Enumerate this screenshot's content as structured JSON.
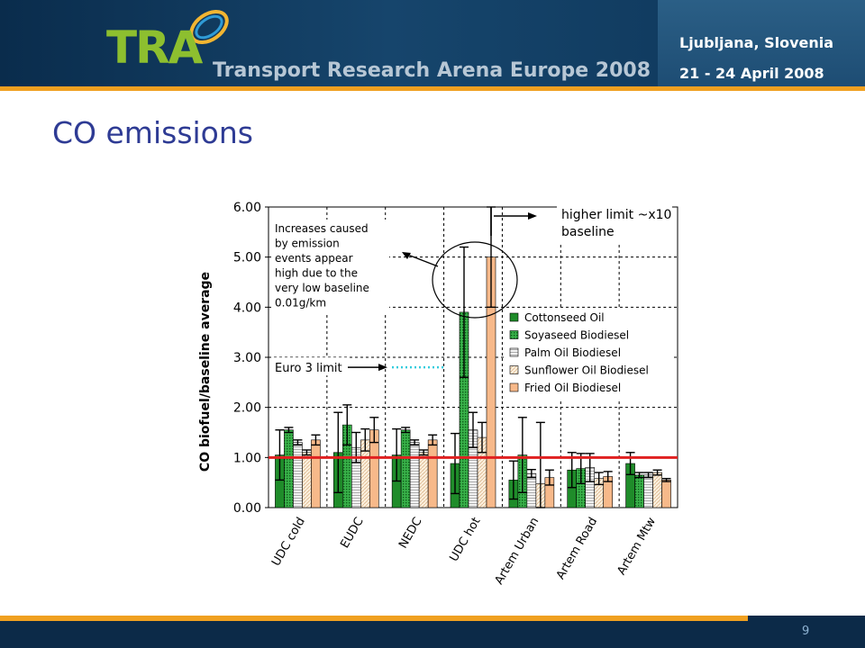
{
  "header": {
    "logo": "TRA",
    "subtitle": "Transport Research Arena Europe 2008",
    "city": "Ljubljana, Slovenia",
    "dates": "21 - 24 April 2008"
  },
  "slide": {
    "title": "CO emissions",
    "page_number": "9"
  },
  "colors": {
    "header_bg": "#0a2c4c",
    "accent_orange": "#f0a020",
    "title_blue": "#2e3b94",
    "baseline_red": "#e02020",
    "euro3_cyan": "#33ccdd"
  },
  "chart_data": {
    "type": "bar",
    "title": "",
    "xlabel": "",
    "ylabel": "CO  biofuel/baseline average",
    "ylim": [
      0,
      6
    ],
    "yticks": [
      "0.00",
      "1.00",
      "2.00",
      "3.00",
      "4.00",
      "5.00",
      "6.00"
    ],
    "grid": true,
    "legend_position": "right",
    "categories": [
      "UDC cold",
      "EUDC",
      "NEDC",
      "UDC hot",
      "Artem Urban",
      "Artem Road",
      "Artem Mtw"
    ],
    "series": [
      {
        "name": "Cottonseed Oil",
        "color": "#1f8c2a",
        "values": [
          1.05,
          1.1,
          1.05,
          0.88,
          0.55,
          0.75,
          0.88
        ],
        "error": [
          0.5,
          0.8,
          0.52,
          0.6,
          0.38,
          0.35,
          0.22
        ]
      },
      {
        "name": "Soyaseed Biodiesel",
        "color": "#39b24a",
        "values": [
          1.55,
          1.65,
          1.55,
          3.9,
          1.05,
          0.78,
          0.65
        ],
        "error": [
          0.05,
          0.4,
          0.05,
          1.3,
          0.75,
          0.3,
          0.05
        ]
      },
      {
        "name": "Palm Oil Biodiesel",
        "color": "#e6e6e6",
        "values": [
          1.3,
          1.2,
          1.3,
          1.55,
          0.68,
          0.8,
          0.65
        ],
        "error": [
          0.05,
          0.3,
          0.05,
          0.35,
          0.08,
          0.28,
          0.05
        ]
      },
      {
        "name": "Sunflower Oil Biodiesel",
        "color": "#fbe4c8",
        "values": [
          1.1,
          1.35,
          1.1,
          1.4,
          0.48,
          0.58,
          0.7
        ],
        "error": [
          0.05,
          0.22,
          0.05,
          0.3,
          1.22,
          0.12,
          0.05
        ]
      },
      {
        "name": "Fried Oil Biodiesel",
        "color": "#f7b98a",
        "values": [
          1.35,
          1.55,
          1.35,
          5.0,
          0.6,
          0.62,
          0.55
        ],
        "error": [
          0.1,
          0.25,
          0.1,
          1.0,
          0.15,
          0.1,
          0.03
        ]
      }
    ],
    "baseline": {
      "value": 1.0
    },
    "euro3_limit": {
      "value": 2.8
    },
    "annotations": {
      "increases_note": [
        "Increases caused",
        "by emission",
        "events  appear",
        "high due to the",
        "very low baseline",
        "0.01g/km"
      ],
      "euro3_label": "Euro 3 limit",
      "higher_limit_label": [
        "higher limit ~x10",
        "baseline"
      ]
    }
  }
}
